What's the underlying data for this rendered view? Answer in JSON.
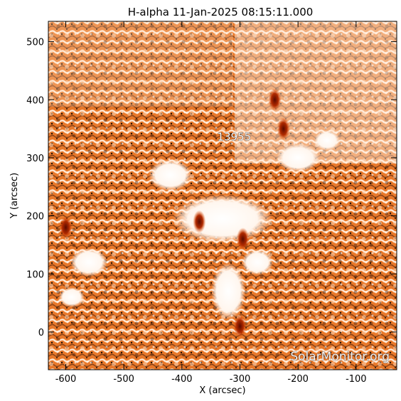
{
  "chart_data": {
    "type": "heatmap",
    "title": "H-alpha 11-Jan-2025 08:15:11.000",
    "xlabel": "X (arcsec)",
    "ylabel": "Y (arcsec)",
    "xlim": [
      -630,
      -30
    ],
    "ylim": [
      -65,
      535
    ],
    "xticks": [
      -600,
      -500,
      -400,
      -300,
      -200,
      -100
    ],
    "yticks": [
      0,
      100,
      200,
      300,
      400,
      500
    ],
    "colormap": {
      "low": "#1a0a00",
      "mid": "#f07820",
      "high": "#fff4e8"
    },
    "annotations": [
      {
        "text": "13955",
        "x": -310,
        "y": 330
      }
    ],
    "bright_features": [
      {
        "x": -600,
        "y": 180
      },
      {
        "x": -370,
        "y": 190
      },
      {
        "x": -295,
        "y": 160
      },
      {
        "x": -240,
        "y": 400
      },
      {
        "x": -225,
        "y": 350
      },
      {
        "x": -300,
        "y": 10
      }
    ],
    "watermark": "SolarMonitor.org"
  }
}
